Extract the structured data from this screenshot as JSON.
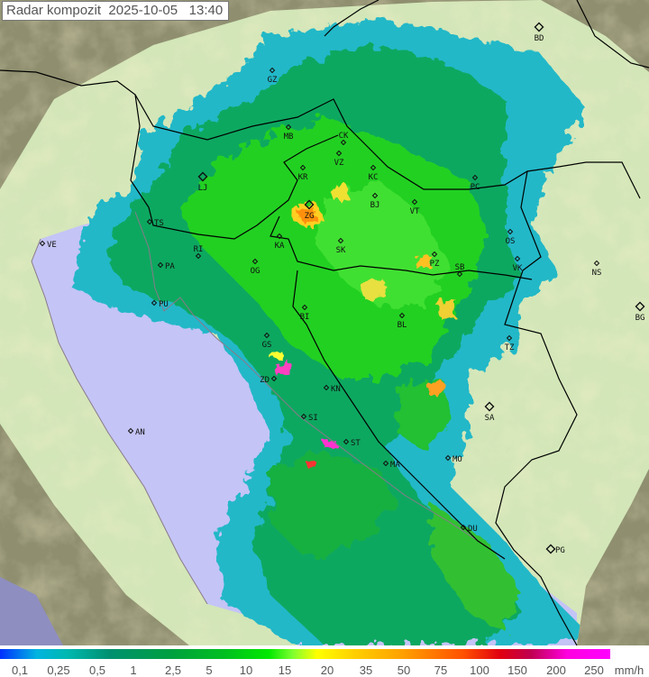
{
  "title": {
    "label": "Radar kompozit",
    "date": "2025-10-05",
    "time": "13:40"
  },
  "colors": {
    "sea": "#c4c4f6",
    "land_in_range": "#d2e6b8",
    "out_of_range": "#8f8f70",
    "border": "#000000"
  },
  "cities": [
    {
      "code": "GZ",
      "type": "small"
    },
    {
      "code": "BD",
      "type": "capital"
    },
    {
      "code": "MB",
      "type": "small"
    },
    {
      "code": "CK",
      "type": "small"
    },
    {
      "code": "VZ",
      "type": "small"
    },
    {
      "code": "KR",
      "type": "small"
    },
    {
      "code": "KC",
      "type": "small"
    },
    {
      "code": "LJ",
      "type": "capital"
    },
    {
      "code": "ZG",
      "type": "capital"
    },
    {
      "code": "BJ",
      "type": "small"
    },
    {
      "code": "VT",
      "type": "small"
    },
    {
      "code": "PC",
      "type": "small"
    },
    {
      "code": "TS",
      "type": "small"
    },
    {
      "code": "KA",
      "type": "small"
    },
    {
      "code": "SK",
      "type": "small"
    },
    {
      "code": "OS",
      "type": "small"
    },
    {
      "code": "VE",
      "type": "small"
    },
    {
      "code": "RI",
      "type": "small"
    },
    {
      "code": "PA",
      "type": "small"
    },
    {
      "code": "OG",
      "type": "small"
    },
    {
      "code": "PZ",
      "type": "small"
    },
    {
      "code": "SB",
      "type": "small"
    },
    {
      "code": "VK",
      "type": "small"
    },
    {
      "code": "NS",
      "type": "small"
    },
    {
      "code": "PU",
      "type": "small"
    },
    {
      "code": "BI",
      "type": "small"
    },
    {
      "code": "BL",
      "type": "small"
    },
    {
      "code": "BG",
      "type": "capital"
    },
    {
      "code": "GS",
      "type": "small"
    },
    {
      "code": "TZ",
      "type": "small"
    },
    {
      "code": "ZD",
      "type": "small"
    },
    {
      "code": "KN",
      "type": "small"
    },
    {
      "code": "SA",
      "type": "capital"
    },
    {
      "code": "SI",
      "type": "small"
    },
    {
      "code": "AN",
      "type": "small"
    },
    {
      "code": "ST",
      "type": "small"
    },
    {
      "code": "MO",
      "type": "small"
    },
    {
      "code": "MA",
      "type": "small"
    },
    {
      "code": "DU",
      "type": "small"
    },
    {
      "code": "PG",
      "type": "capital"
    }
  ],
  "legend": {
    "unit": "mm/h",
    "ticks": [
      "0,1",
      "0,25",
      "0,5",
      "1",
      "2,5",
      "5",
      "10",
      "15",
      "20",
      "35",
      "50",
      "75",
      "100",
      "150",
      "200",
      "250"
    ]
  }
}
